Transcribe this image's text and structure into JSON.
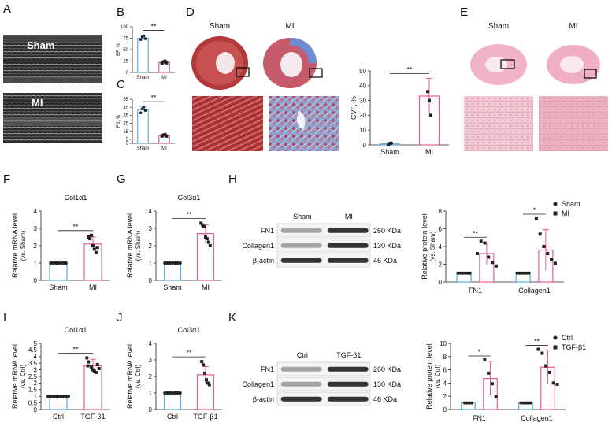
{
  "panel_labels": {
    "A": "A",
    "B": "B",
    "C": "C",
    "D": "D",
    "E": "E",
    "F": "F",
    "G": "G",
    "H": "H",
    "I": "I",
    "J": "J",
    "K": "K"
  },
  "panel_a": {
    "sham": "Sham",
    "mi": "MI"
  },
  "panel_d": {
    "sham": "Sham",
    "mi": "MI"
  },
  "panel_e": {
    "sham": "Sham",
    "mi": "MI"
  },
  "blot_h": {
    "lanes": [
      "Sham",
      "MI"
    ],
    "rows": [
      "FN1",
      "Collagen1",
      "β-actin"
    ],
    "sizes": [
      "260 KDa",
      "130 KDa",
      "46 KDa"
    ]
  },
  "blot_k": {
    "lanes": [
      "Ctrl",
      "TGF-β1"
    ],
    "rows": [
      "FN1",
      "Collagen1",
      "β-actin"
    ],
    "sizes": [
      "260 KDa",
      "130 KDa",
      "46 KDa"
    ]
  },
  "legend_h": [
    "Sham",
    "MI"
  ],
  "legend_k": [
    "Ctrl",
    "TGF-β1"
  ],
  "colors": {
    "ctrl": "#5aaee0",
    "treat": "#e85a9c",
    "bar_ctrl": "#3f8fcf",
    "bar_treat": "#e04b8e"
  },
  "chart_data": [
    {
      "id": "B",
      "type": "bar",
      "title": "",
      "ylabel": "EF, %",
      "categories": [
        "Sham",
        "MI"
      ],
      "ylim": [
        0,
        100
      ],
      "yticks": [
        0,
        25,
        50,
        75,
        100
      ],
      "means": [
        75,
        22
      ],
      "sd": [
        7,
        3
      ],
      "points": [
        [
          72,
          78,
          80,
          74
        ],
        [
          20,
          23,
          25,
          21
        ]
      ],
      "sig": "**"
    },
    {
      "id": "C",
      "type": "bar",
      "title": "",
      "ylabel": "FS, %",
      "categories": [
        "Sham",
        "MI"
      ],
      "ylim": [
        0,
        55
      ],
      "yticks": [
        0,
        5,
        15,
        25,
        35,
        45,
        55
      ],
      "means": [
        42,
        10
      ],
      "sd": [
        4,
        1
      ],
      "points": [
        [
          38,
          43,
          45,
          41
        ],
        [
          9,
          10,
          11,
          9
        ]
      ],
      "sig": "**"
    },
    {
      "id": "D",
      "type": "bar",
      "title": "",
      "ylabel": "CVF, %",
      "categories": [
        "Sham",
        "MI"
      ],
      "ylim": [
        0,
        50
      ],
      "yticks": [
        0,
        10,
        20,
        30,
        40,
        50
      ],
      "means": [
        0.7,
        33
      ],
      "sd": [
        1,
        12
      ],
      "points": [
        [
          0,
          1,
          1.2
        ],
        [
          36,
          30,
          20
        ]
      ],
      "sig": "**"
    },
    {
      "id": "F",
      "type": "bar",
      "title": "Col1α1",
      "ylabel": "Relative mRNA level",
      "ylabel2": "(vs. Sham)",
      "categories": [
        "Sham",
        "MI"
      ],
      "ylim": [
        0,
        4
      ],
      "yticks": [
        0,
        1,
        2,
        3,
        4
      ],
      "means": [
        1,
        2.1
      ],
      "sd": [
        0,
        0.4
      ],
      "points": [
        [
          1,
          1,
          1,
          1,
          1,
          1,
          1
        ],
        [
          2.5,
          2.4,
          2.6,
          2.0,
          1.8,
          1.6,
          1.9
        ]
      ],
      "sig": "**"
    },
    {
      "id": "G",
      "type": "bar",
      "title": "Col3α1",
      "ylabel": "Relative mRNA level",
      "ylabel2": "(vs. Sham)",
      "categories": [
        "Sham",
        "MI"
      ],
      "ylim": [
        0,
        4
      ],
      "yticks": [
        0,
        1,
        2,
        3,
        4
      ],
      "means": [
        1,
        2.7
      ],
      "sd": [
        0,
        0.5
      ],
      "points": [
        [
          1,
          1,
          1,
          1,
          1,
          1,
          1
        ],
        [
          3.3,
          3.2,
          3.1,
          2.5,
          2.4,
          2.2,
          2.0
        ]
      ],
      "sig": "**"
    },
    {
      "id": "H",
      "type": "bar",
      "title": "",
      "ylabel": "Relative protein level",
      "ylabel2": "(vs. Sham)",
      "categories": [
        "FN1",
        "Collagen1"
      ],
      "series": [
        {
          "name": "Sham",
          "values": [
            1,
            1
          ]
        },
        {
          "name": "MI",
          "values": [
            3.2,
            3.6
          ]
        }
      ],
      "sd": [
        [
          0,
          0
        ],
        [
          1.2,
          2.3
        ]
      ],
      "points": [
        [
          [
            1,
            1,
            1,
            1,
            1,
            1
          ],
          [
            3.2,
            4.6,
            4.4,
            2.8,
            2.2,
            1.8
          ]
        ],
        [
          [
            1,
            1,
            1,
            1,
            1,
            1
          ],
          [
            7.2,
            5.4,
            4.0,
            3.2,
            2.5,
            2.1
          ]
        ]
      ],
      "ylim": [
        0,
        8
      ],
      "yticks": [
        0,
        2,
        4,
        6,
        8
      ],
      "sig": [
        "**",
        "*"
      ]
    },
    {
      "id": "I",
      "type": "bar",
      "title": "Col1α1",
      "ylabel": "Relative mRNA level",
      "ylabel2": "(vs. Ctrl)",
      "categories": [
        "Ctrl",
        "TGF-β1"
      ],
      "ylim": [
        0,
        5
      ],
      "yticks": [
        0,
        0.5,
        1,
        1.5,
        2,
        2.5,
        3,
        3.5,
        4,
        4.5,
        5
      ],
      "means": [
        1,
        3.3
      ],
      "sd": [
        0,
        0.5
      ],
      "points": [
        [
          1,
          1,
          1,
          1,
          1,
          1,
          1,
          1,
          1
        ],
        [
          3.9,
          3.6,
          3.3,
          3.2,
          3.0,
          2.9,
          2.8,
          3.4,
          3.1
        ]
      ],
      "sig": "**"
    },
    {
      "id": "J",
      "type": "bar",
      "title": "Col3α1",
      "ylabel": "Relative mRNA level",
      "ylabel2": "(vs. Ctrl)",
      "categories": [
        "Ctrl",
        "TGF-β1"
      ],
      "ylim": [
        0,
        4
      ],
      "yticks": [
        0,
        1,
        2,
        3,
        4
      ],
      "means": [
        1,
        2.1
      ],
      "sd": [
        0,
        0.5
      ],
      "points": [
        [
          1,
          1,
          1,
          1,
          1,
          1,
          1
        ],
        [
          2.9,
          2.7,
          2.2,
          1.8,
          1.6,
          1.5
        ]
      ],
      "sig": "**"
    },
    {
      "id": "K",
      "type": "bar",
      "title": "",
      "ylabel": "Relative protein level",
      "ylabel2": "(vs. Ctrl)",
      "categories": [
        "FN1",
        "Collagen1"
      ],
      "series": [
        {
          "name": "Ctrl",
          "values": [
            1,
            1
          ]
        },
        {
          "name": "TGF-β1",
          "values": [
            4.7,
            6.4
          ]
        }
      ],
      "sd": [
        [
          0,
          0
        ],
        [
          2.6,
          2.6
        ]
      ],
      "points": [
        [
          [
            1,
            1,
            1,
            1
          ],
          [
            7.5,
            5.5,
            3.9,
            2.0
          ]
        ],
        [
          [
            1,
            1,
            1,
            1,
            1
          ],
          [
            9.1,
            8.5,
            6.6,
            5.6,
            4.0,
            3.8
          ]
        ]
      ],
      "ylim": [
        0,
        10
      ],
      "yticks": [
        0,
        2,
        4,
        6,
        8,
        10
      ],
      "sig": [
        "*",
        "**"
      ]
    }
  ]
}
